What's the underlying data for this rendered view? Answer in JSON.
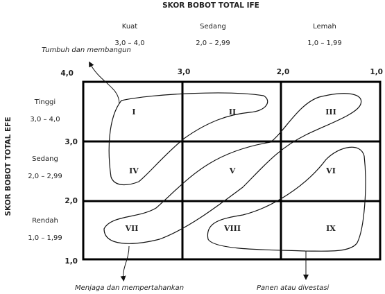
{
  "x_axis": {
    "title": "SKOR BOBOT TOTAL IFE",
    "columns": [
      {
        "label": "Kuat",
        "range": "3,0 – 4,0"
      },
      {
        "label": "Sedang",
        "range": "2,0 – 2,99"
      },
      {
        "label": "Lemah",
        "range": "1,0 – 1,99"
      }
    ],
    "ticks": [
      "3,0",
      "2,0",
      "1,0"
    ]
  },
  "y_axis": {
    "title": "SKOR BOBOT TOTAL EFE",
    "rows": [
      {
        "label": "Tinggi",
        "range": "3,0 – 4,0"
      },
      {
        "label": "Sedang",
        "range": "2,0 – 2,99"
      },
      {
        "label": "Rendah",
        "range": "1,0 – 1,99"
      }
    ],
    "ticks": [
      "4,0",
      "3,0",
      "2,0",
      "1,0"
    ]
  },
  "cells": [
    "I",
    "II",
    "III",
    "IV",
    "V",
    "VI",
    "VII",
    "VIII",
    "IX"
  ],
  "annotations": [
    "Tumbuh dan membangun",
    "Menjaga dan mempertahankan",
    "Panen atau divestasi"
  ]
}
